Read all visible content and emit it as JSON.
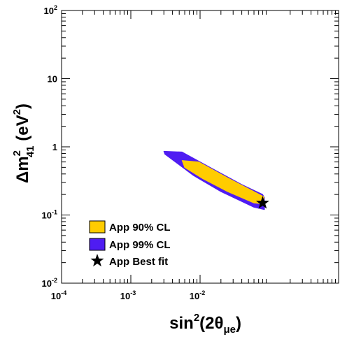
{
  "chart_data": {
    "type": "contour",
    "xlabel": {
      "main": "sin",
      "sup": "2",
      "open": "(2θ",
      "sub": "μe",
      "close": ")"
    },
    "ylabel": {
      "main": "Δm",
      "sup": "2",
      "sub": "41",
      "unit_open": " (eV",
      "unit_sup": "2",
      "unit_close": ")"
    },
    "x_scale": "log",
    "y_scale": "log",
    "xlim": [
      0.0001,
      1
    ],
    "ylim": [
      0.01,
      100
    ],
    "x_ticks": [
      {
        "value": 0.0001,
        "base": "10",
        "exp": "-4"
      },
      {
        "value": 0.001,
        "base": "10",
        "exp": "-3"
      },
      {
        "value": 0.01,
        "base": "10",
        "exp": "-2"
      }
    ],
    "y_ticks": [
      {
        "value": 0.01,
        "base": "10",
        "exp": "-2"
      },
      {
        "value": 0.1,
        "base": "10",
        "exp": "-1"
      },
      {
        "value": 1,
        "base": "1",
        "exp": ""
      },
      {
        "value": 10,
        "base": "10",
        "exp": ""
      },
      {
        "value": 100,
        "base": "10",
        "exp": "2"
      }
    ],
    "series": [
      {
        "name": "App 99% CL",
        "color": "#4f1cf2",
        "contour": [
          [
            0.003,
            0.86
          ],
          [
            0.0055,
            0.84
          ],
          [
            0.015,
            0.48
          ],
          [
            0.04,
            0.28
          ],
          [
            0.08,
            0.2
          ],
          [
            0.085,
            0.18
          ],
          [
            0.085,
            0.12
          ],
          [
            0.06,
            0.13
          ],
          [
            0.02,
            0.22
          ],
          [
            0.008,
            0.38
          ],
          [
            0.0042,
            0.62
          ],
          [
            0.0031,
            0.78
          ]
        ]
      },
      {
        "name": "App 90% CL",
        "color": "#ffcc00",
        "contour": [
          [
            0.0055,
            0.63
          ],
          [
            0.0095,
            0.6
          ],
          [
            0.025,
            0.35
          ],
          [
            0.06,
            0.22
          ],
          [
            0.083,
            0.185
          ],
          [
            0.083,
            0.145
          ],
          [
            0.06,
            0.15
          ],
          [
            0.025,
            0.22
          ],
          [
            0.011,
            0.34
          ],
          [
            0.006,
            0.5
          ]
        ]
      }
    ],
    "best_fit": {
      "name": "App Best fit",
      "x": 0.08,
      "y": 0.15
    },
    "legend": {
      "position": "bottom-left",
      "entries": [
        {
          "label": "App 90% CL",
          "kind": "box",
          "color": "#ffcc00"
        },
        {
          "label": "App 99% CL",
          "kind": "box",
          "color": "#4f1cf2"
        },
        {
          "label": "App Best fit",
          "kind": "star",
          "color": "#000000"
        }
      ]
    },
    "grid": false
  }
}
